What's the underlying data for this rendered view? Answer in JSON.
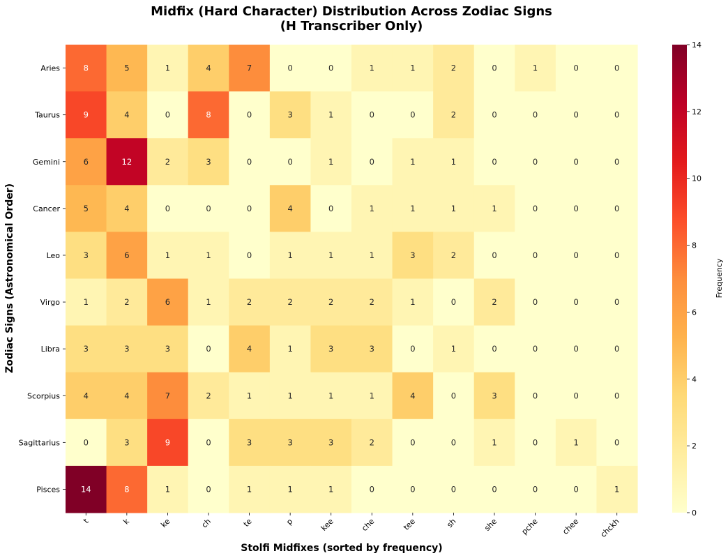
{
  "chart_data": {
    "type": "heatmap",
    "title": "Midfix (Hard Character) Distribution Across Zodiac Signs",
    "subtitle": "(H Transcriber Only)",
    "xlabel": "Stolfi Midfixes (sorted by frequency)",
    "ylabel": "Zodiac Signs (Astronomical Order)",
    "x_categories": [
      "t",
      "k",
      "ke",
      "ch",
      "te",
      "p",
      "kee",
      "che",
      "tee",
      "sh",
      "she",
      "pche",
      "chee",
      "chckh"
    ],
    "y_categories": [
      "Aries",
      "Taurus",
      "Gemini",
      "Cancer",
      "Leo",
      "Virgo",
      "Libra",
      "Scorpius",
      "Sagittarius",
      "Pisces"
    ],
    "values": [
      [
        8,
        5,
        1,
        4,
        7,
        0,
        0,
        1,
        1,
        2,
        0,
        1,
        0,
        0
      ],
      [
        9,
        4,
        0,
        8,
        0,
        3,
        1,
        0,
        0,
        2,
        0,
        0,
        0,
        0
      ],
      [
        6,
        12,
        2,
        3,
        0,
        0,
        1,
        0,
        1,
        1,
        0,
        0,
        0,
        0
      ],
      [
        5,
        4,
        0,
        0,
        0,
        4,
        0,
        1,
        1,
        1,
        1,
        0,
        0,
        0
      ],
      [
        3,
        6,
        1,
        1,
        0,
        1,
        1,
        1,
        3,
        2,
        0,
        0,
        0,
        0
      ],
      [
        1,
        2,
        6,
        1,
        2,
        2,
        2,
        2,
        1,
        0,
        2,
        0,
        0,
        0
      ],
      [
        3,
        3,
        3,
        0,
        4,
        1,
        3,
        3,
        0,
        1,
        0,
        0,
        0,
        0
      ],
      [
        4,
        4,
        7,
        2,
        1,
        1,
        1,
        1,
        4,
        0,
        3,
        0,
        0,
        0
      ],
      [
        0,
        3,
        9,
        0,
        3,
        3,
        3,
        2,
        0,
        0,
        1,
        0,
        1,
        0
      ],
      [
        14,
        8,
        1,
        0,
        1,
        1,
        1,
        0,
        0,
        0,
        0,
        0,
        0,
        1
      ]
    ],
    "colorbar": {
      "label": "Frequency",
      "range": [
        0,
        14
      ],
      "ticks": [
        0,
        2,
        4,
        6,
        8,
        10,
        12,
        14
      ],
      "colormap": "YlOrRd"
    }
  }
}
